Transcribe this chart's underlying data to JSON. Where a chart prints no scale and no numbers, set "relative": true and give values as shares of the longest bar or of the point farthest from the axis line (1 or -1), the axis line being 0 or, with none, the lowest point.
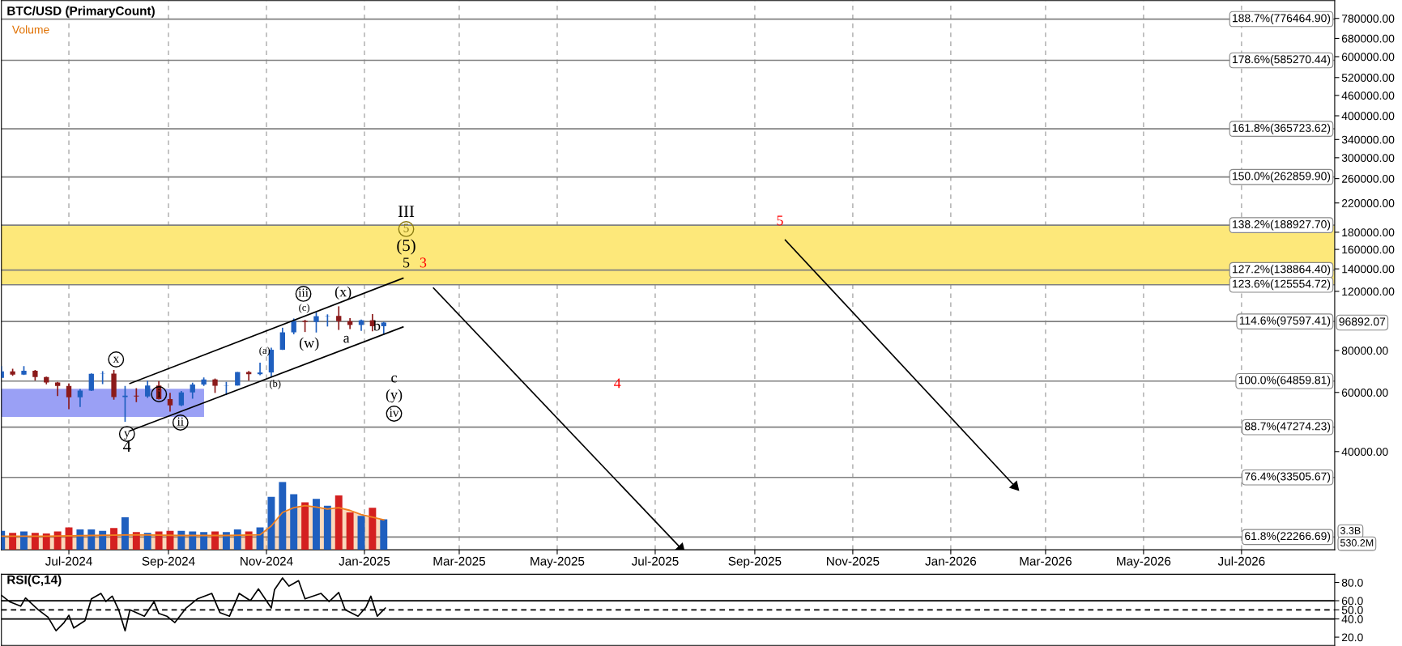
{
  "chart_data": [
    {
      "type": "candlestick",
      "title": "BTC/USD (PrimaryCount)",
      "log": "y",
      "grid": "x",
      "xlim": [
        "2024-05-20",
        "2026-08-28"
      ],
      "xticks": [
        {
          "value": "2024-07-01",
          "label": "Jul-2024"
        },
        {
          "value": "2024-09-01",
          "label": "Sep-2024"
        },
        {
          "value": "2024-11-01",
          "label": "Nov-2024"
        },
        {
          "value": "2025-01-01",
          "label": "Jan-2025"
        },
        {
          "value": "2025-03-01",
          "label": "Mar-2025"
        },
        {
          "value": "2025-05-01",
          "label": "May-2025"
        },
        {
          "value": "2025-07-01",
          "label": "Jul-2025"
        },
        {
          "value": "2025-09-01",
          "label": "Sep-2025"
        },
        {
          "value": "2025-11-01",
          "label": "Nov-2025"
        },
        {
          "value": "2026-01-01",
          "label": "Jan-2026"
        },
        {
          "value": "2026-03-01",
          "label": "Mar-2026"
        },
        {
          "value": "2026-05-01",
          "label": "May-2026"
        },
        {
          "value": "2026-07-01",
          "label": "Jul-2026"
        }
      ],
      "ylim": [
        20400,
        881000
      ],
      "yticks": [
        {
          "value": 40000,
          "label": "40000.00"
        },
        {
          "value": 60000,
          "label": "60000.00"
        },
        {
          "value": 80000,
          "label": "80000.00"
        },
        {
          "value": 120000,
          "label": "120000.00"
        },
        {
          "value": 140000,
          "label": "140000.00"
        },
        {
          "value": 160000,
          "label": "160000.00"
        },
        {
          "value": 180000,
          "label": "180000.00"
        },
        {
          "value": 220000,
          "label": "220000.00"
        },
        {
          "value": 260000,
          "label": "260000.00"
        },
        {
          "value": 300000,
          "label": "300000.00"
        },
        {
          "value": 340000,
          "label": "340000.00"
        },
        {
          "value": 400000,
          "label": "400000.00"
        },
        {
          "value": 460000,
          "label": "460000.00"
        },
        {
          "value": 520000,
          "label": "520000.00"
        },
        {
          "value": 600000,
          "label": "600000.00"
        },
        {
          "value": 680000,
          "label": "680000.00"
        },
        {
          "value": 780000,
          "label": "780000.00"
        }
      ],
      "series": [
        {
          "x": [
            "2024-05-20",
            "2024-05-27",
            "2024-06-03",
            "2024-06-10",
            "2024-06-17",
            "2024-06-24",
            "2024-07-01",
            "2024-07-08",
            "2024-07-15",
            "2024-07-22",
            "2024-07-29",
            "2024-08-05",
            "2024-08-12",
            "2024-08-19",
            "2024-08-26",
            "2024-09-02",
            "2024-09-09",
            "2024-09-16",
            "2024-09-23",
            "2024-09-30",
            "2024-10-07",
            "2024-10-14",
            "2024-10-21",
            "2024-10-28",
            "2024-11-04",
            "2024-11-11",
            "2024-11-18",
            "2024-11-25",
            "2024-12-02",
            "2024-12-09",
            "2024-12-16",
            "2024-12-23",
            "2024-12-30",
            "2025-01-06",
            "2025-01-13"
          ],
          "ohlc": [
            [
              66300,
              71900,
              66300,
              69300
            ],
            [
              69300,
              70600,
              67200,
              67800
            ],
            [
              67800,
              71900,
              67600,
              69600
            ],
            [
              69600,
              70000,
              65100,
              66700
            ],
            [
              66700,
              66900,
              63400,
              64200
            ],
            [
              64200,
              64500,
              58500,
              62700
            ],
            [
              62700,
              63800,
              53500,
              58000
            ],
            [
              58000,
              61400,
              54300,
              60800
            ],
            [
              60800,
              68400,
              60600,
              68200
            ],
            [
              68200,
              69400,
              63500,
              68300
            ],
            [
              68300,
              70000,
              57100,
              58100
            ],
            [
              58100,
              62700,
              49100,
              58700
            ],
            [
              58700,
              61800,
              56100,
              58400
            ],
            [
              58400,
              65000,
              57800,
              62900
            ],
            [
              62900,
              64900,
              57200,
              57300
            ],
            [
              57300,
              59800,
              52600,
              54900
            ],
            [
              54900,
              60600,
              54600,
              60000
            ],
            [
              60000,
              64100,
              57500,
              63300
            ],
            [
              63300,
              66500,
              62700,
              65600
            ],
            [
              65600,
              66000,
              59800,
              62800
            ],
            [
              62800,
              64500,
              58900,
              62900
            ],
            [
              62900,
              69000,
              62900,
              69000
            ],
            [
              69000,
              69500,
              65100,
              68000
            ],
            [
              68000,
              73600,
              67500,
              68800
            ],
            [
              68800,
              81500,
              66800,
              80400
            ],
            [
              80400,
              93500,
              80300,
              90600
            ],
            [
              90600,
              99600,
              89400,
              98000
            ],
            [
              98000,
              98700,
              90800,
              97300
            ],
            [
              97300,
              103900,
              90500,
              101200
            ],
            [
              101200,
              102500,
              94300,
              101400
            ],
            [
              101400,
              108300,
              92100,
              97800
            ],
            [
              97800,
              99900,
              92600,
              95300
            ],
            [
              95300,
              98900,
              91500,
              98400
            ],
            [
              98400,
              102700,
              91200,
              94500
            ],
            [
              94500,
              97400,
              89200,
              96892.07
            ]
          ],
          "colors": [
            "#1f5fbf",
            "#8b1a1a",
            "#1f5fbf",
            "#8b1a1a",
            "#8b1a1a",
            "#8b1a1a",
            "#8b1a1a",
            "#1f5fbf",
            "#1f5fbf",
            "#1f5fbf",
            "#8b1a1a",
            "#1f5fbf",
            "#8b1a1a",
            "#1f5fbf",
            "#8b1a1a",
            "#8b1a1a",
            "#1f5fbf",
            "#1f5fbf",
            "#1f5fbf",
            "#8b1a1a",
            "#1f5fbf",
            "#1f5fbf",
            "#8b1a1a",
            "#1f5fbf",
            "#1f5fbf",
            "#1f5fbf",
            "#1f5fbf",
            "#8b1a1a",
            "#1f5fbf",
            "#1f5fbf",
            "#8b1a1a",
            "#8b1a1a",
            "#1f5fbf",
            "#8b1a1a",
            "#1f5fbf"
          ]
        },
        {
          "type": "line",
          "color": "#000000",
          "x": [
            "2024-08-08",
            "2025-01-25"
          ],
          "values": [
            63800,
            131300
          ]
        },
        {
          "type": "line",
          "color": "#000000",
          "x": [
            "2024-08-08",
            "2025-01-25"
          ],
          "values": [
            46100,
            94000
          ]
        },
        {
          "type": "line",
          "marker": "triangle",
          "color": "#000000",
          "x": [
            "2025-02-13",
            "2025-07-17"
          ],
          "values": [
            122700,
            20600
          ]
        },
        {
          "type": "line",
          "marker": "triangle",
          "color": "#000000",
          "x": [
            "2025-09-20",
            "2026-02-10"
          ],
          "values": [
            170600,
            31500
          ]
        }
      ],
      "bands": [
        {
          "axis": "y",
          "from": 125554.72,
          "to": 188927.7,
          "color": "#fde87a"
        },
        {
          "axis": "y",
          "from": 50700,
          "to": 61500,
          "color": "#9aa0f5"
        }
      ],
      "ref_lines": [
        {
          "axis": "y",
          "value": 776464.9,
          "label": "188.7%(776464.90)"
        },
        {
          "axis": "y",
          "value": 585270.44,
          "label": "178.6%(585270.44)"
        },
        {
          "axis": "y",
          "value": 365723.62,
          "label": "161.8%(365723.62)"
        },
        {
          "axis": "y",
          "value": 262859.9,
          "label": "150.0%(262859.90)"
        },
        {
          "axis": "y",
          "value": 188927.7,
          "label": "138.2%(188927.70)"
        },
        {
          "axis": "y",
          "value": 138864.4,
          "label": "127.2%(138864.40)"
        },
        {
          "axis": "y",
          "value": 125554.72,
          "label": "123.6%(125554.72)"
        },
        {
          "axis": "y",
          "value": 97597.41,
          "label": "114.6%(97597.41)"
        },
        {
          "axis": "y",
          "value": 64859.81,
          "label": "100.0%(64859.81)"
        },
        {
          "axis": "y",
          "value": 47274.23,
          "label": "88.7%(47274.23)"
        },
        {
          "axis": "y",
          "value": 33505.67,
          "label": "76.4%(33505.67)"
        },
        {
          "axis": "y",
          "value": 22266.69,
          "label": "61.8%(22266.69)"
        }
      ],
      "annotations": [
        "Volume",
        "96892.07",
        "III",
        "5",
        "(5)",
        "5",
        "3",
        "5",
        "4",
        "iii",
        "(c)",
        "(x)",
        "b",
        "(w)",
        "a",
        "c",
        "(y)",
        "iv",
        "(a)",
        "(b)",
        "x",
        "i",
        "ii",
        "y",
        "4"
      ]
    },
    {
      "type": "bar",
      "relative": true,
      "tick_labels": false,
      "xlim": [
        "2024-05-20",
        "2026-08-28"
      ],
      "series": [
        {
          "x": [
            "2024-05-20",
            "2024-05-27",
            "2024-06-03",
            "2024-06-10",
            "2024-06-17",
            "2024-06-24",
            "2024-07-01",
            "2024-07-08",
            "2024-07-15",
            "2024-07-22",
            "2024-07-29",
            "2024-08-05",
            "2024-08-12",
            "2024-08-19",
            "2024-08-26",
            "2024-09-02",
            "2024-09-09",
            "2024-09-16",
            "2024-09-23",
            "2024-09-30",
            "2024-10-07",
            "2024-10-14",
            "2024-10-21",
            "2024-10-28",
            "2024-11-04",
            "2024-11-11",
            "2024-11-18",
            "2024-11-25",
            "2024-12-02",
            "2024-12-09",
            "2024-12-16",
            "2024-12-23",
            "2024-12-30",
            "2025-01-06",
            "2025-01-13"
          ],
          "values": [
            0.28,
            0.25,
            0.27,
            0.25,
            0.24,
            0.27,
            0.33,
            0.3,
            0.3,
            0.28,
            0.32,
            0.48,
            0.26,
            0.25,
            0.27,
            0.28,
            0.28,
            0.27,
            0.26,
            0.27,
            0.26,
            0.3,
            0.27,
            0.33,
            0.78,
            1.0,
            0.82,
            0.7,
            0.75,
            0.65,
            0.8,
            0.55,
            0.5,
            0.62,
            0.45
          ],
          "colors": [
            "#1f5fbf",
            "#d42020",
            "#1f5fbf",
            "#d42020",
            "#d42020",
            "#d42020",
            "#d42020",
            "#1f5fbf",
            "#1f5fbf",
            "#1f5fbf",
            "#d42020",
            "#1f5fbf",
            "#d42020",
            "#1f5fbf",
            "#d42020",
            "#d42020",
            "#1f5fbf",
            "#1f5fbf",
            "#1f5fbf",
            "#d42020",
            "#1f5fbf",
            "#1f5fbf",
            "#d42020",
            "#1f5fbf",
            "#1f5fbf",
            "#1f5fbf",
            "#1f5fbf",
            "#d42020",
            "#1f5fbf",
            "#1f5fbf",
            "#d42020",
            "#d42020",
            "#1f5fbf",
            "#d42020",
            "#1f5fbf"
          ]
        },
        {
          "type": "area",
          "color": "#f08020",
          "x": [
            "2024-05-20",
            "2024-06-17",
            "2024-07-15",
            "2024-08-12",
            "2024-09-09",
            "2024-10-07",
            "2024-10-28",
            "2024-11-04",
            "2024-11-11",
            "2024-11-18",
            "2024-11-25",
            "2024-12-02",
            "2024-12-09",
            "2024-12-16",
            "2024-12-23",
            "2024-12-30",
            "2025-01-06",
            "2025-01-13"
          ],
          "values": [
            0.2,
            0.2,
            0.21,
            0.22,
            0.21,
            0.21,
            0.22,
            0.35,
            0.55,
            0.62,
            0.65,
            0.63,
            0.6,
            0.62,
            0.58,
            0.52,
            0.48,
            0.44
          ]
        }
      ],
      "annotations": [
        "3.3B",
        "530.2M"
      ]
    },
    {
      "type": "line",
      "title": "RSI(C,14)",
      "tick_labels": "y",
      "grid": "x",
      "xlim": [
        "2024-05-20",
        "2026-08-28"
      ],
      "ylim": [
        11,
        89
      ],
      "yticks": [
        {
          "value": 20,
          "label": "20.0"
        },
        {
          "value": 40,
          "label": "40.0"
        },
        {
          "value": 50,
          "label": "50.0"
        },
        {
          "value": 60,
          "label": "60.0"
        },
        {
          "value": 80,
          "label": "80.0"
        }
      ],
      "ref_lines": [
        {
          "axis": "y",
          "value": 60
        },
        {
          "axis": "y",
          "value": 50,
          "line_style": "dashed"
        },
        {
          "axis": "y",
          "value": 40
        }
      ],
      "series": [
        {
          "color": "#000000",
          "x": [
            "2024-05-20",
            "2024-05-25",
            "2024-06-01",
            "2024-06-04",
            "2024-06-12",
            "2024-06-18",
            "2024-06-23",
            "2024-06-28",
            "2024-07-01",
            "2024-07-04",
            "2024-07-11",
            "2024-07-15",
            "2024-07-21",
            "2024-07-24",
            "2024-07-28",
            "2024-08-01",
            "2024-08-05",
            "2024-08-08",
            "2024-08-17",
            "2024-08-23",
            "2024-08-26",
            "2024-08-31",
            "2024-09-05",
            "2024-09-12",
            "2024-09-19",
            "2024-09-28",
            "2024-10-03",
            "2024-10-09",
            "2024-10-15",
            "2024-10-22",
            "2024-10-27",
            "2024-11-04",
            "2024-11-06",
            "2024-11-11",
            "2024-11-15",
            "2024-11-21",
            "2024-11-25",
            "2024-12-05",
            "2024-12-10",
            "2024-12-16",
            "2024-12-20",
            "2024-12-28",
            "2025-01-02",
            "2025-01-05",
            "2025-01-09",
            "2025-01-14"
          ],
          "values": [
            66,
            59,
            54,
            63,
            50,
            42,
            27,
            36,
            44,
            30,
            38,
            62,
            68,
            59,
            65,
            50,
            27,
            50,
            43,
            59,
            46,
            43,
            36,
            52,
            62,
            68,
            47,
            43,
            68,
            60,
            73,
            52,
            72,
            85,
            76,
            82,
            62,
            68,
            59,
            69,
            50,
            43,
            53,
            65,
            43,
            52
          ]
        }
      ]
    }
  ]
}
